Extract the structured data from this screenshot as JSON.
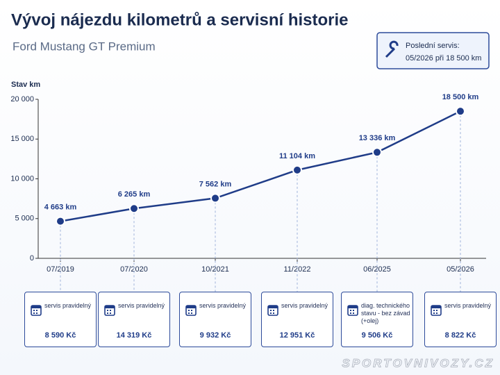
{
  "chart_data": {
    "type": "line",
    "title": "Vývoj nájezdu kilometrů a servisní historie",
    "subtitle": "Ford Mustang GT Premium",
    "info": {
      "title": "Poslední servis:",
      "text": "05/2026 při 18 500 km"
    },
    "y_label": "Stav km",
    "categories": [
      "07/2019",
      "07/2020",
      "10/2021",
      "11/2022",
      "06/2025",
      "05/2026"
    ],
    "series": [
      {
        "name": "Stav km",
        "color": "#1f3c88",
        "values": [
          4663,
          6265,
          7562,
          11104,
          13336,
          18500
        ],
        "value_labels": [
          "4 663 km",
          "6 265 km",
          "7 562 km",
          "11 104 km",
          "13 336 km",
          "18 500 km"
        ]
      }
    ],
    "ylim": [
      0,
      20000
    ],
    "yticks": [
      {
        "value": 0,
        "label": "0"
      },
      {
        "value": 5000,
        "label": "5 000"
      },
      {
        "value": 10000,
        "label": "10 000"
      },
      {
        "value": 15000,
        "label": "15 000"
      },
      {
        "value": 20000,
        "label": "20 000"
      }
    ],
    "grid": false,
    "services": [
      {
        "label": "servis pravidelný",
        "price": "8 590 Kč"
      },
      {
        "label": "servis pravidelný",
        "price": "14 319 Kč"
      },
      {
        "label": "servis pravidelný",
        "price": "9 932 Kč"
      },
      {
        "label": "servis pravidelný",
        "price": "12 951 Kč"
      },
      {
        "label": "diag. technického stavu - bez závad (+olej)",
        "price": "9 506 Kč"
      },
      {
        "label": "servis pravidelný",
        "price": "8 822 Kč"
      }
    ],
    "watermark": "SPORTOVNIVOZY.CZ"
  }
}
